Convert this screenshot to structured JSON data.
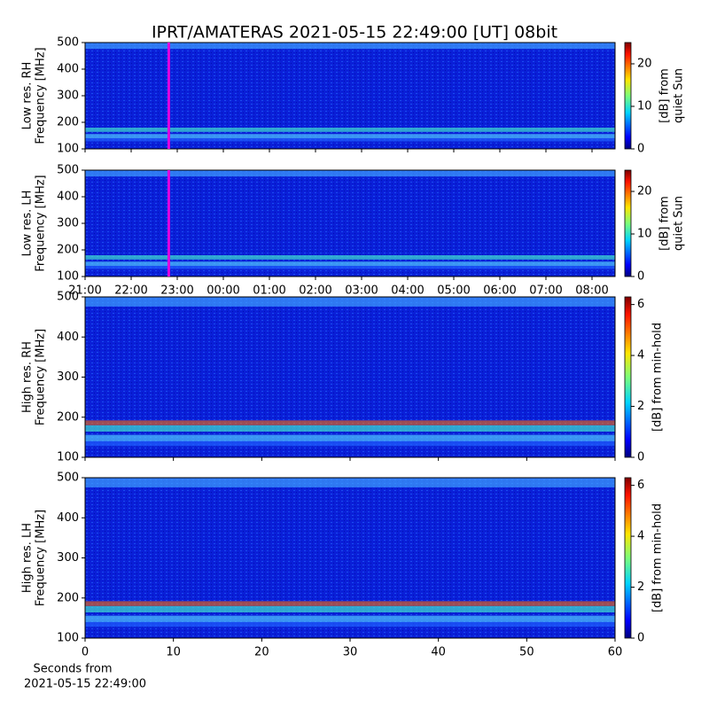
{
  "title": "IPRT/AMATERAS 2021-05-15 22:49:00 [UT]   08bit",
  "chart_data": [
    {
      "type": "spectrogram",
      "ylabel": [
        "Low res. RH",
        "Frequency [MHz]"
      ],
      "ylim": [
        100,
        500
      ],
      "yticks": [
        100,
        200,
        300,
        400,
        500
      ],
      "xlim": [
        21,
        32.5
      ],
      "xtick_labels": false,
      "xticks": [
        {
          "value": 21,
          "label": "21:00"
        },
        {
          "value": 22,
          "label": "22:00"
        },
        {
          "value": 23,
          "label": "23:00"
        },
        {
          "value": 24,
          "label": "00:00"
        },
        {
          "value": 25,
          "label": "01:00"
        },
        {
          "value": 26,
          "label": "02:00"
        },
        {
          "value": 27,
          "label": "03:00"
        },
        {
          "value": 28,
          "label": "04:00"
        },
        {
          "value": 29,
          "label": "05:00"
        },
        {
          "value": 30,
          "label": "06:00"
        },
        {
          "value": 31,
          "label": "07:00"
        },
        {
          "value": 32,
          "label": "08:00"
        }
      ],
      "marker": {
        "x": 22.8167,
        "color": "#e000e0"
      },
      "colorbar": {
        "label": [
          "[dB] from",
          "quiet Sun"
        ],
        "lim": [
          0,
          25
        ],
        "ticks": [
          0,
          10,
          20
        ],
        "colormap": "jet"
      }
    },
    {
      "type": "spectrogram",
      "ylabel": [
        "Low res. LH",
        "Frequency [MHz]"
      ],
      "ylim": [
        100,
        500
      ],
      "yticks": [
        100,
        200,
        300,
        400,
        500
      ],
      "xlim": [
        21,
        32.5
      ],
      "xtick_labels": true,
      "xticks": [
        {
          "value": 21,
          "label": "21:00"
        },
        {
          "value": 22,
          "label": "22:00"
        },
        {
          "value": 23,
          "label": "23:00"
        },
        {
          "value": 24,
          "label": "00:00"
        },
        {
          "value": 25,
          "label": "01:00"
        },
        {
          "value": 26,
          "label": "02:00"
        },
        {
          "value": 27,
          "label": "03:00"
        },
        {
          "value": 28,
          "label": "04:00"
        },
        {
          "value": 29,
          "label": "05:00"
        },
        {
          "value": 30,
          "label": "06:00"
        },
        {
          "value": 31,
          "label": "07:00"
        },
        {
          "value": 32,
          "label": "08:00"
        }
      ],
      "marker": {
        "x": 22.8167,
        "color": "#e000e0"
      },
      "colorbar": {
        "label": [
          "[dB] from",
          "quiet Sun"
        ],
        "lim": [
          0,
          25
        ],
        "ticks": [
          0,
          10,
          20
        ],
        "colormap": "jet"
      }
    },
    {
      "type": "spectrogram",
      "ylabel": [
        "High res. RH",
        "Frequency [MHz]"
      ],
      "ylim": [
        100,
        500
      ],
      "yticks": [
        100,
        200,
        300,
        400,
        500
      ],
      "xlim": [
        0,
        60
      ],
      "xtick_labels": false,
      "xticks": [
        0,
        10,
        20,
        30,
        40,
        50,
        60
      ],
      "colorbar": {
        "label": [
          "[dB] from min-hold"
        ],
        "lim": [
          0,
          6.3
        ],
        "ticks": [
          0,
          2,
          4,
          6
        ],
        "colormap": "jet"
      }
    },
    {
      "type": "spectrogram",
      "ylabel": [
        "High res. LH",
        "Frequency [MHz]"
      ],
      "ylim": [
        100,
        500
      ],
      "yticks": [
        100,
        200,
        300,
        400,
        500
      ],
      "xlim": [
        0,
        60
      ],
      "xtick_labels": true,
      "xticks": [
        0,
        10,
        20,
        30,
        40,
        50,
        60
      ],
      "xlabel": [
        "Seconds from",
        "2021-05-15 22:49:00"
      ],
      "colorbar": {
        "label": [
          "[dB] from min-hold"
        ],
        "lim": [
          0,
          6.3
        ],
        "ticks": [
          0,
          2,
          4,
          6
        ],
        "colormap": "jet"
      }
    }
  ]
}
